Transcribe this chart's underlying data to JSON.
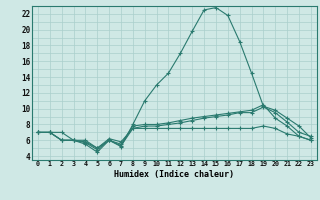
{
  "title": "",
  "xlabel": "Humidex (Indice chaleur)",
  "ylabel": "",
  "background_color": "#cfe8e5",
  "grid_color": "#aacfcc",
  "line_color": "#2a7a6f",
  "xlim": [
    -0.5,
    23.5
  ],
  "ylim": [
    3.5,
    23.0
  ],
  "xtick_labels": [
    "0",
    "1",
    "2",
    "3",
    "4",
    "5",
    "6",
    "7",
    "8",
    "9",
    "10",
    "11",
    "12",
    "13",
    "14",
    "15",
    "16",
    "17",
    "18",
    "19",
    "20",
    "21",
    "22",
    "23"
  ],
  "ytick_values": [
    4,
    6,
    8,
    10,
    12,
    14,
    16,
    18,
    20,
    22
  ],
  "series": [
    {
      "x": [
        0,
        1,
        2,
        3,
        4,
        5,
        6,
        7,
        8,
        9,
        10,
        11,
        12,
        13,
        14,
        15,
        16,
        17,
        18,
        19,
        20,
        21,
        22,
        23
      ],
      "y": [
        7.0,
        7.0,
        7.0,
        6.0,
        6.0,
        5.0,
        6.0,
        5.2,
        8.0,
        11.0,
        13.0,
        14.5,
        17.0,
        19.8,
        22.5,
        22.8,
        21.8,
        18.5,
        14.5,
        10.3,
        9.8,
        8.8,
        7.8,
        6.3
      ]
    },
    {
      "x": [
        0,
        1,
        2,
        3,
        4,
        5,
        6,
        7,
        8,
        9,
        10,
        11,
        12,
        13,
        14,
        15,
        16,
        17,
        18,
        19,
        20,
        21,
        22,
        23
      ],
      "y": [
        7.0,
        7.0,
        6.0,
        6.0,
        5.5,
        4.5,
        6.0,
        5.3,
        7.5,
        7.8,
        7.8,
        8.0,
        8.2,
        8.5,
        8.8,
        9.0,
        9.2,
        9.5,
        9.5,
        10.2,
        9.5,
        8.3,
        7.0,
        6.5
      ]
    },
    {
      "x": [
        0,
        1,
        2,
        3,
        4,
        5,
        6,
        7,
        8,
        9,
        10,
        11,
        12,
        13,
        14,
        15,
        16,
        17,
        18,
        19,
        20,
        21,
        22,
        23
      ],
      "y": [
        7.0,
        7.0,
        6.0,
        6.0,
        5.7,
        4.8,
        6.0,
        5.5,
        7.8,
        8.0,
        8.0,
        8.2,
        8.5,
        8.8,
        9.0,
        9.2,
        9.4,
        9.6,
        9.8,
        10.5,
        8.8,
        7.8,
        6.5,
        6.0
      ]
    },
    {
      "x": [
        0,
        1,
        2,
        3,
        4,
        5,
        6,
        7,
        8,
        9,
        10,
        11,
        12,
        13,
        14,
        15,
        16,
        17,
        18,
        19,
        20,
        21,
        22,
        23
      ],
      "y": [
        7.0,
        7.0,
        6.0,
        6.0,
        5.8,
        5.0,
        6.2,
        5.8,
        7.5,
        7.5,
        7.5,
        7.5,
        7.5,
        7.5,
        7.5,
        7.5,
        7.5,
        7.5,
        7.5,
        7.8,
        7.5,
        6.8,
        6.5,
        6.0
      ]
    }
  ],
  "figwidth": 3.2,
  "figheight": 2.0,
  "dpi": 100
}
